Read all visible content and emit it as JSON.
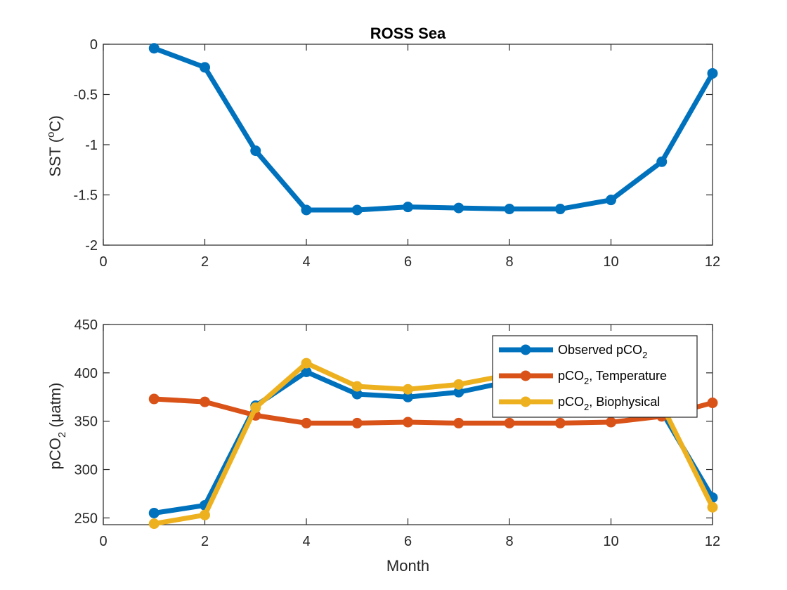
{
  "chart_data": [
    {
      "type": "line",
      "title": "ROSS Sea",
      "xlabel": "",
      "ylabel": "SST (",
      "ylabel_sup": "o",
      "ylabel_suffix": "C)",
      "xlim": [
        0,
        12
      ],
      "ylim": [
        -2,
        0
      ],
      "xticks": [
        0,
        2,
        4,
        6,
        8,
        10,
        12
      ],
      "yticks": [
        0,
        -0.5,
        -1,
        -1.5,
        -2
      ],
      "grid": false,
      "x": [
        1,
        2,
        3,
        4,
        5,
        6,
        7,
        8,
        9,
        10,
        11,
        12
      ],
      "series": [
        {
          "values": [
            -0.04,
            -0.23,
            -1.06,
            -1.65,
            -1.65,
            -1.62,
            -1.63,
            -1.64,
            -1.64,
            -1.55,
            -1.17,
            -0.29
          ],
          "color": "#0072BD"
        }
      ]
    },
    {
      "type": "line",
      "title": "",
      "xlabel": "Month",
      "ylabel": "pCO",
      "ylabel_sub": "2",
      "ylabel_suffix": " (μatm)",
      "xlim": [
        0,
        12
      ],
      "ylim": [
        243,
        450
      ],
      "xticks": [
        0,
        2,
        4,
        6,
        8,
        10,
        12
      ],
      "yticks": [
        250,
        300,
        350,
        400,
        450
      ],
      "grid": false,
      "legend_position": "top-right",
      "x": [
        1,
        2,
        3,
        4,
        5,
        6,
        7,
        8,
        9,
        10,
        11,
        12
      ],
      "series": [
        {
          "name": "Observed pCO",
          "name_sub": "2",
          "name_suffix": "",
          "values": [
            255,
            263,
            366,
            401,
            378,
            375,
            380,
            391,
            391,
            384,
            360,
            271
          ],
          "color": "#0072BD"
        },
        {
          "name": "pCO",
          "name_sub": "2",
          "name_suffix": ", Temperature",
          "values": [
            373,
            370,
            356,
            348,
            348,
            349,
            348,
            348,
            348,
            349,
            355,
            369
          ],
          "color": "#D95319"
        },
        {
          "name": "pCO",
          "name_sub": "2",
          "name_suffix": ", Biophysical",
          "values": [
            244,
            253,
            364,
            410,
            386,
            383,
            388,
            398,
            397,
            390,
            367,
            261
          ],
          "color": "#EDB120"
        }
      ]
    }
  ]
}
